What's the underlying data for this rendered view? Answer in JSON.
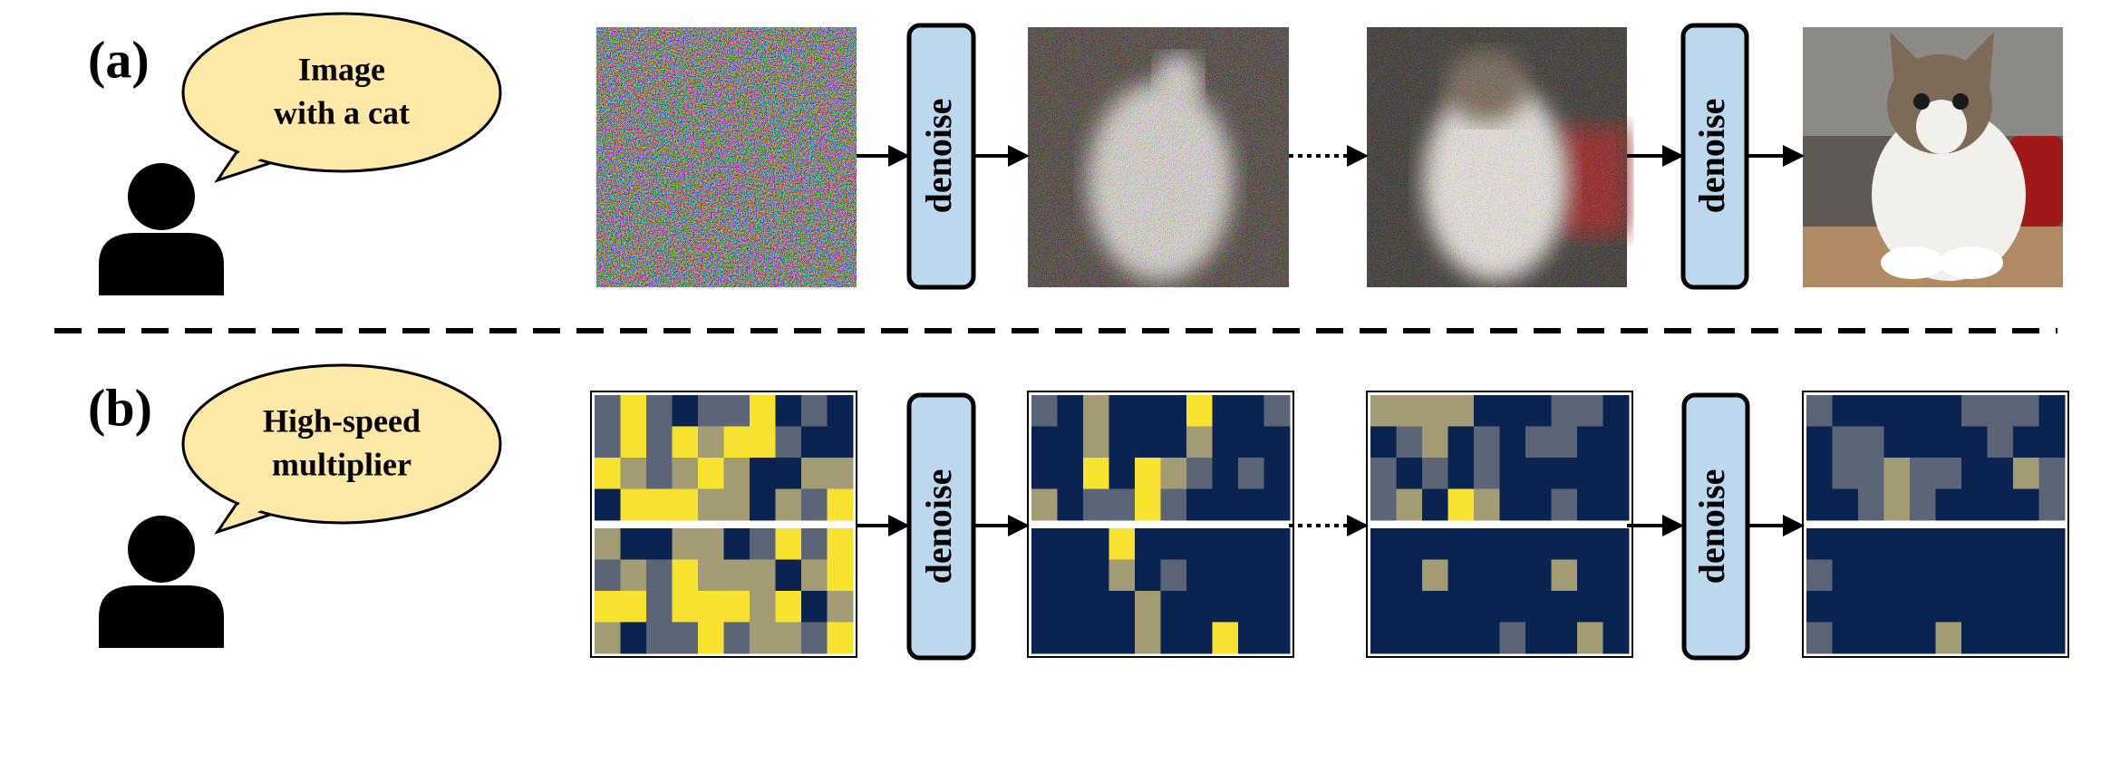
{
  "rows": [
    {
      "label": "(a)",
      "prompt_lines": [
        "Image",
        "with a cat"
      ],
      "steps": [
        "denoise",
        "denoise"
      ]
    },
    {
      "label": "(b)",
      "prompt_lines": [
        "High-speed",
        "multiplier"
      ],
      "steps": [
        "denoise",
        "denoise"
      ]
    }
  ]
}
